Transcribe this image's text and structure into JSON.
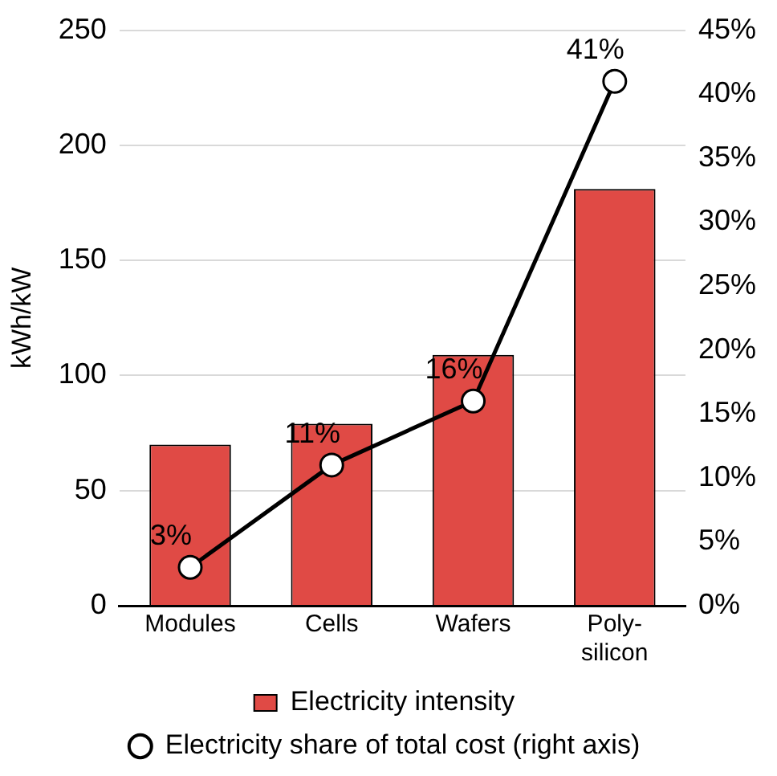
{
  "chart_data": {
    "type": "bar",
    "ylabel": "kWh/kW",
    "categories": [
      "Modules",
      "Cells",
      "Wafers",
      "Poly-silicon"
    ],
    "series": [
      {
        "name": "Electricity intensity",
        "color": "#e04a45",
        "values": [
          70,
          79,
          109,
          181
        ]
      },
      {
        "name": "Electricity share of total cost (right axis)",
        "type": "line",
        "axis": "y2",
        "color": "#000000",
        "marker": "circle",
        "values": [
          3,
          11,
          16,
          41
        ],
        "value_labels": [
          "3%",
          "11%",
          "16%",
          "41%"
        ]
      }
    ],
    "ylim": [
      0,
      250
    ],
    "yticks": [
      0,
      50,
      100,
      150,
      200,
      250
    ],
    "y2lim": [
      0,
      45
    ],
    "y2ticks": [
      {
        "value": 0,
        "label": "0%"
      },
      {
        "value": 5,
        "label": "5%"
      },
      {
        "value": 10,
        "label": "10%"
      },
      {
        "value": 15,
        "label": "15%"
      },
      {
        "value": 20,
        "label": "20%"
      },
      {
        "value": 25,
        "label": "25%"
      },
      {
        "value": 30,
        "label": "30%"
      },
      {
        "value": 35,
        "label": "35%"
      },
      {
        "value": 40,
        "label": "40%"
      },
      {
        "value": 45,
        "label": "45%"
      }
    ],
    "grid": "y",
    "legend": "bottom"
  }
}
